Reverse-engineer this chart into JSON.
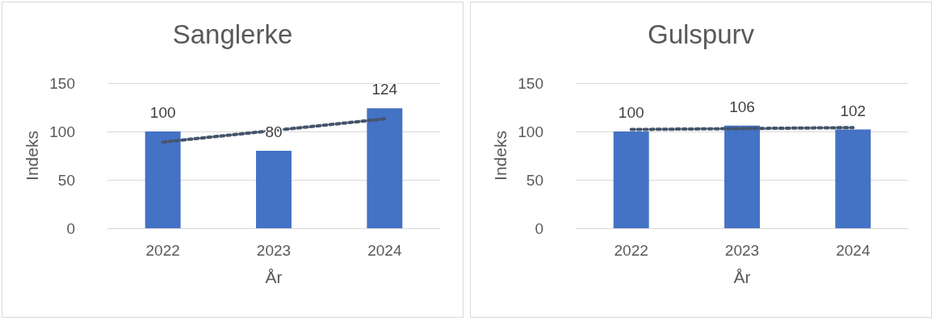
{
  "chart_data": [
    {
      "type": "bar",
      "title": "Sanglerke",
      "xlabel": "År",
      "ylabel": "Indeks",
      "categories": [
        "2022",
        "2023",
        "2024"
      ],
      "ylim": [
        0,
        150
      ],
      "yticks": [
        0,
        50,
        100,
        150
      ],
      "grid": "y",
      "series": [
        {
          "color": "#4472c4",
          "values": [
            100,
            80,
            124
          ],
          "value_labels": [
            "100",
            "80",
            "124"
          ]
        },
        {
          "type": "line",
          "color": "#44546a",
          "line_style": "dotted",
          "marker": "none",
          "values": [
            89,
            101,
            113
          ]
        }
      ]
    },
    {
      "type": "bar",
      "title": "Gulspurv",
      "xlabel": "År",
      "ylabel": "Indeks",
      "categories": [
        "2022",
        "2023",
        "2024"
      ],
      "ylim": [
        0,
        150
      ],
      "yticks": [
        0,
        50,
        100,
        150
      ],
      "grid": "y",
      "series": [
        {
          "color": "#4472c4",
          "values": [
            100,
            106,
            102
          ],
          "value_labels": [
            "100",
            "106",
            "102"
          ]
        },
        {
          "type": "line",
          "color": "#44546a",
          "line_style": "dotted",
          "marker": "none",
          "values": [
            102,
            103,
            104
          ]
        }
      ]
    }
  ]
}
